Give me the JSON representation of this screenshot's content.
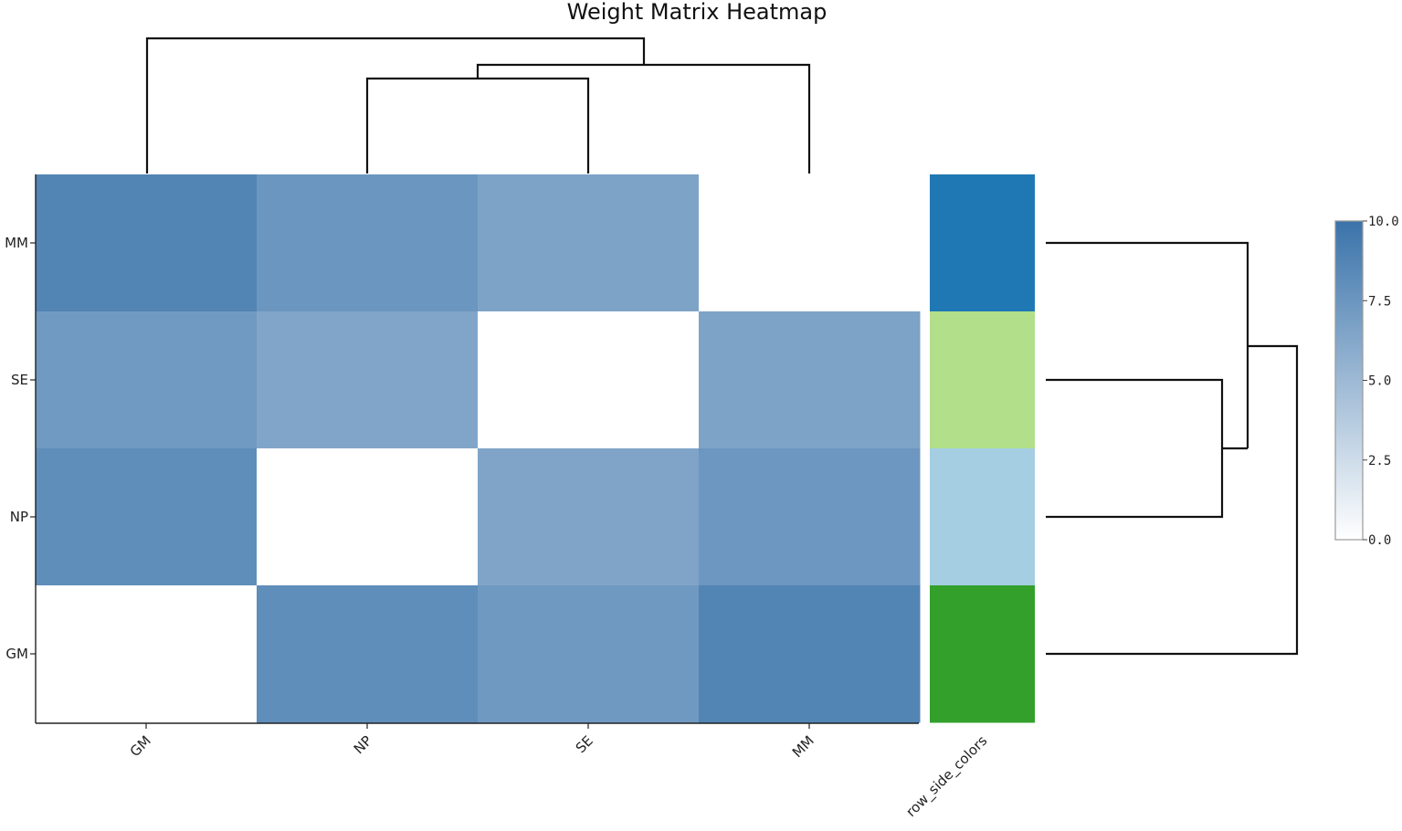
{
  "chart_data": {
    "type": "heatmap",
    "title": "Weight Matrix Heatmap",
    "x_categories": [
      "GM",
      "NP",
      "SE",
      "MM"
    ],
    "y_categories": [
      "MM",
      "SE",
      "NP",
      "GM"
    ],
    "side_label": "row_side_colors",
    "values": [
      [
        8.8,
        7.5,
        6.6,
        0.0
      ],
      [
        7.2,
        6.4,
        0.0,
        6.6
      ],
      [
        8.1,
        0.0,
        6.5,
        7.4
      ],
      [
        0.0,
        8.1,
        7.3,
        8.8
      ]
    ],
    "row_side_colors": [
      "#1f78b4",
      "#b2df8a",
      "#a6cee3",
      "#33a02c"
    ],
    "colorscale": {
      "min": 0,
      "max": 10,
      "low_color": "#ffffff",
      "high_color": "#3a73aa",
      "ticks": [
        "0.0",
        "2.5",
        "5.0",
        "7.5",
        "10.0"
      ],
      "tick_values": [
        0,
        2.5,
        5,
        7.5,
        10
      ]
    },
    "dendrogram_top": "GM | ((NP, SE), MM)",
    "dendrogram_right": "GM | (MM, (SE, NP))"
  }
}
